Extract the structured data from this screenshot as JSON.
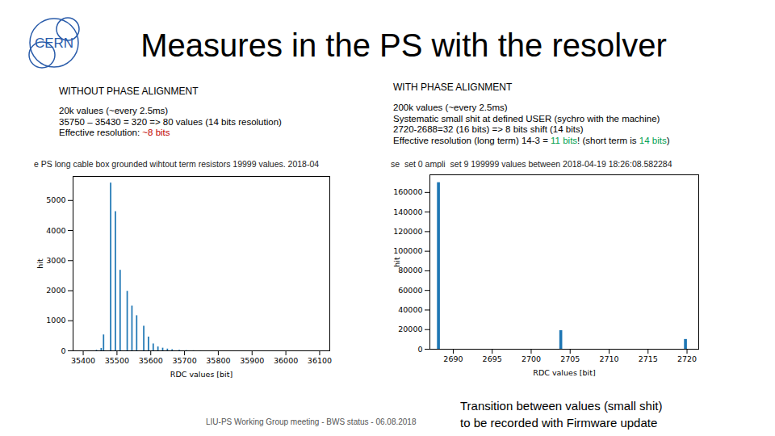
{
  "slide": {
    "title": "Measures in the PS with the resolver",
    "logo": "CERN",
    "footer": "LIU-PS Working Group meeting - BWS status - 06.08.2018"
  },
  "chart_data": [
    {
      "type": "histogram",
      "heading": "WITHOUT PHASE ALIGNMENT",
      "notes": [
        [
          {
            "text": "20k values (~every 2.5ms)"
          }
        ],
        [
          {
            "text": "35750 – 35430 = 320 => 80 values (14 bits resolution)"
          }
        ],
        [
          {
            "text": "Effective resolution: "
          },
          {
            "text": "~8 bits",
            "color": "#c00000"
          }
        ]
      ],
      "title": "e PS long cable box grounded wihtout term resistors 19999 values. 2018-04",
      "x_label": "RDC values [bit]",
      "y_label": "hit",
      "bins": [
        35430,
        35437,
        35444,
        35451,
        35458,
        35465,
        35472,
        35479,
        35486,
        35493,
        35500,
        35507,
        35514,
        35521,
        35528,
        35535,
        35542,
        35549,
        35556,
        35563,
        35570,
        35577,
        35584,
        35591,
        35598,
        35605,
        35612,
        35619,
        35626,
        35633,
        35640,
        35647,
        35654,
        35661,
        35668,
        35675,
        35682,
        35689,
        35696,
        35703,
        35710,
        35717,
        35724,
        35731,
        35738,
        35745,
        35752
      ],
      "counts": [
        0,
        20,
        0,
        80,
        530,
        0,
        0,
        5580,
        0,
        4630,
        0,
        2680,
        0,
        0,
        1980,
        0,
        1490,
        0,
        1170,
        0,
        0,
        820,
        0,
        460,
        0,
        230,
        0,
        130,
        0,
        90,
        0,
        60,
        0,
        40,
        0,
        0,
        20,
        0,
        0,
        10,
        0,
        0,
        5,
        0,
        0,
        2
      ],
      "color": "#1f77b4",
      "xlim": [
        35370,
        36130
      ],
      "xticks": [
        35400,
        35500,
        35600,
        35700,
        35800,
        35900,
        36000,
        36100
      ],
      "ylim": [
        0,
        5800
      ],
      "yticks": [
        0,
        1000,
        2000,
        3000,
        4000,
        5000
      ]
    },
    {
      "type": "histogram",
      "heading": "WITH PHASE ALIGNMENT",
      "notes": [
        [
          {
            "text": "200k values (~every 2.5ms)"
          }
        ],
        [
          {
            "text": "Systematic small shit at defined USER  (sychro with the machine)"
          }
        ],
        [
          {
            "text": "2720-2688=32 (16 bits) => 8 bits shift (14 bits)"
          }
        ],
        [
          {
            "text": "Effective resolution (long term) 14-3 = "
          },
          {
            "text": "11 bits",
            "color": "#00a050"
          },
          {
            "text": "! (short term is "
          },
          {
            "text": "14 bits",
            "color": "#00a050"
          },
          {
            "text": ")"
          }
        ]
      ],
      "title": "se_set 0 ampli_set 9 199999 values between 2018-04-19 18:26:08.582284",
      "x_label": "RDC values [bit]",
      "y_label": "hit",
      "bins": [
        2687.9,
        2688.4,
        2703.6,
        2704.1,
        2719.6,
        2720.1
      ],
      "counts": [
        170000,
        0,
        19000,
        0,
        10000
      ],
      "color": "#1f77b4",
      "xlim": [
        2687,
        2721.5
      ],
      "xticks": [
        2690,
        2695,
        2700,
        2705,
        2710,
        2715,
        2720
      ],
      "ylim": [
        0,
        178000
      ],
      "yticks": [
        0,
        20000,
        40000,
        60000,
        80000,
        100000,
        120000,
        140000,
        160000
      ],
      "annotation": [
        "Transition between values (small shit)",
        "to be recorded with Firmware update"
      ]
    }
  ]
}
